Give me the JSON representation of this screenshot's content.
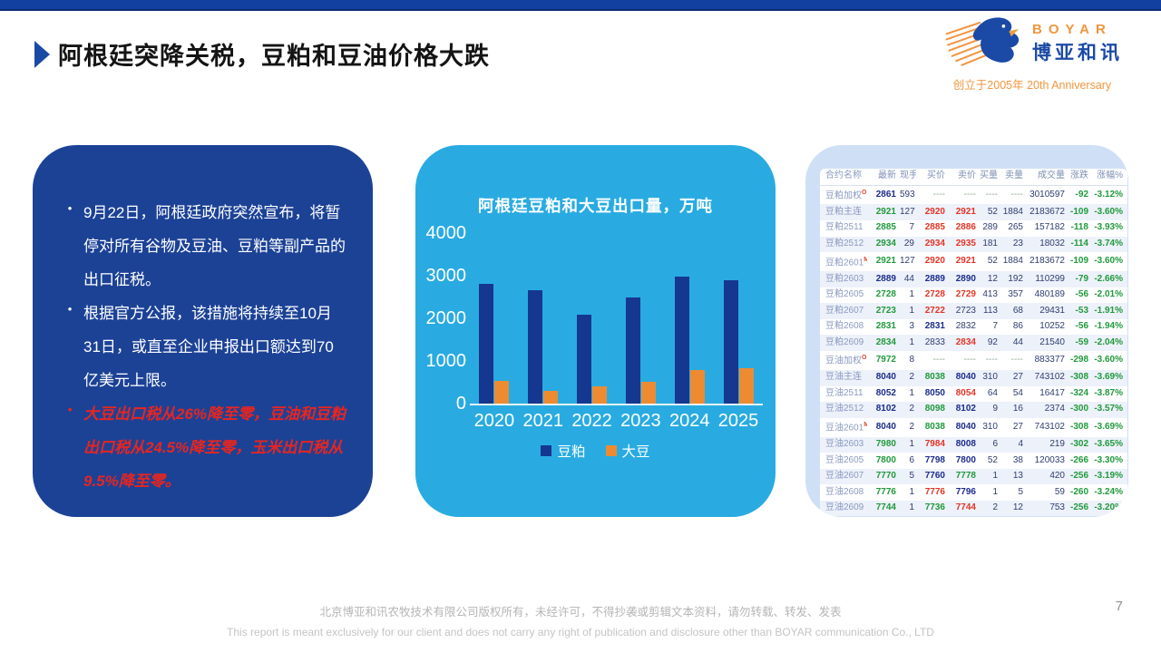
{
  "page": {
    "title": "阿根廷突降关税，豆粕和豆油价格大跌",
    "page_number": "7"
  },
  "logo": {
    "brand_en": "BOYAR",
    "brand_cn": "博亚和讯",
    "anniversary": "创立于2005年 20th Anniversary"
  },
  "notes": {
    "bullets": [
      {
        "style": "normal",
        "text": "9月22日，阿根廷政府突然宣布，将暂停对所有谷物及豆油、豆粕等副产品的出口征税。"
      },
      {
        "style": "normal",
        "text": "根据官方公报，该措施将持续至10月31日，或直至企业申报出口额达到70亿美元上限。"
      },
      {
        "style": "highlight",
        "text": "大豆出口税从26%降至零，豆油和豆粕出口税从24.5%降至零，玉米出口税从9.5%降至零。"
      }
    ]
  },
  "chart_data": {
    "type": "bar",
    "title": "阿根廷豆粕和大豆出口量，万吨",
    "categories": [
      "2020",
      "2021",
      "2022",
      "2023",
      "2024",
      "2025"
    ],
    "series": [
      {
        "name": "豆粕",
        "color": "#15378f",
        "values": [
          2800,
          2650,
          2080,
          2480,
          2980,
          2900
        ]
      },
      {
        "name": "大豆",
        "color": "#ed8b33",
        "values": [
          530,
          300,
          410,
          510,
          790,
          820
        ]
      }
    ],
    "yticks": [
      4000,
      3000,
      2000,
      1000,
      0
    ],
    "ylim": [
      0,
      4000
    ],
    "grid": false,
    "legend_position": "bottom"
  },
  "market_table": {
    "headers": [
      "合约名称",
      "最新",
      "现手",
      "买价",
      "卖价",
      "买量",
      "卖量",
      "成交量",
      "涨跌",
      "涨幅%"
    ],
    "rows": [
      {
        "name": "豆粕加权",
        "sup": "O",
        "v": [
          "2861",
          "593",
          "----",
          "----",
          "----",
          "----",
          "3010597",
          "-92",
          "-3.12%"
        ],
        "c": [
          "n",
          "k",
          "d",
          "d",
          "d",
          "d",
          "k",
          "g",
          "g"
        ],
        "frag": "4"
      },
      {
        "name": "豆粕主连",
        "sup": "",
        "v": [
          "2921",
          "127",
          "2920",
          "2921",
          "52",
          "1884",
          "2183672",
          "-109",
          "-3.60%"
        ],
        "c": [
          "g",
          "k",
          "r",
          "r",
          "k",
          "k",
          "k",
          "g",
          "g"
        ],
        "frag": "2"
      },
      {
        "name": "豆粕2511",
        "sup": "",
        "v": [
          "2885",
          "7",
          "2885",
          "2886",
          "289",
          "265",
          "157182",
          "-118",
          "-3.93%"
        ],
        "c": [
          "g",
          "k",
          "r",
          "r",
          "k",
          "k",
          "k",
          "g",
          "g"
        ],
        "frag": ""
      },
      {
        "name": "豆粕2512",
        "sup": "",
        "v": [
          "2934",
          "29",
          "2934",
          "2935",
          "181",
          "23",
          "18032",
          "-114",
          "-3.74%"
        ],
        "c": [
          "g",
          "k",
          "r",
          "r",
          "k",
          "k",
          "k",
          "g",
          "g"
        ],
        "frag": ""
      },
      {
        "name": "豆粕2601",
        "sup": "M",
        "v": [
          "2921",
          "127",
          "2920",
          "2921",
          "52",
          "1884",
          "2183672",
          "-109",
          "-3.60%"
        ],
        "c": [
          "g",
          "k",
          "r",
          "r",
          "k",
          "k",
          "k",
          "g",
          "g"
        ],
        "frag": "2"
      },
      {
        "name": "豆粕2603",
        "sup": "",
        "v": [
          "2889",
          "44",
          "2889",
          "2890",
          "12",
          "192",
          "110299",
          "-79",
          "-2.66%"
        ],
        "c": [
          "n",
          "k",
          "n",
          "n",
          "k",
          "k",
          "k",
          "g",
          "g"
        ],
        "frag": ""
      },
      {
        "name": "豆粕2605",
        "sup": "",
        "v": [
          "2728",
          "1",
          "2728",
          "2729",
          "413",
          "357",
          "480189",
          "-56",
          "-2.01%"
        ],
        "c": [
          "g",
          "k",
          "r",
          "r",
          "k",
          "k",
          "k",
          "g",
          "g"
        ],
        "frag": "3"
      },
      {
        "name": "豆粕2607",
        "sup": "",
        "v": [
          "2723",
          "1",
          "2722",
          "2723",
          "113",
          "68",
          "29431",
          "-53",
          "-1.91%"
        ],
        "c": [
          "g",
          "k",
          "r",
          "k",
          "k",
          "k",
          "k",
          "g",
          "g"
        ],
        "frag": ""
      },
      {
        "name": "豆粕2608",
        "sup": "",
        "v": [
          "2831",
          "3",
          "2831",
          "2832",
          "7",
          "86",
          "10252",
          "-56",
          "-1.94%"
        ],
        "c": [
          "g",
          "k",
          "n",
          "k",
          "k",
          "k",
          "k",
          "g",
          "g"
        ],
        "frag": ""
      },
      {
        "name": "豆粕2609",
        "sup": "",
        "v": [
          "2834",
          "1",
          "2833",
          "2834",
          "92",
          "44",
          "21540",
          "-59",
          "-2.04%"
        ],
        "c": [
          "g",
          "k",
          "k",
          "r",
          "k",
          "k",
          "k",
          "g",
          "g"
        ],
        "frag": ""
      },
      {
        "name": "豆油加权",
        "sup": "O",
        "v": [
          "7972",
          "8",
          "----",
          "----",
          "----",
          "----",
          "883377",
          "-298",
          "-3.60%"
        ],
        "c": [
          "g",
          "k",
          "d",
          "d",
          "d",
          "d",
          "k",
          "g",
          "g"
        ],
        "frag": ""
      },
      {
        "name": "豆油主连",
        "sup": "",
        "v": [
          "8040",
          "2",
          "8038",
          "8040",
          "310",
          "27",
          "743102",
          "-308",
          "-3.69%"
        ],
        "c": [
          "n",
          "k",
          "g",
          "n",
          "k",
          "k",
          "k",
          "g",
          "g"
        ],
        "frag": ""
      },
      {
        "name": "豆油2511",
        "sup": "",
        "v": [
          "8052",
          "1",
          "8050",
          "8054",
          "64",
          "54",
          "16417",
          "-324",
          "-3.87%"
        ],
        "c": [
          "n",
          "k",
          "n",
          "r",
          "k",
          "k",
          "k",
          "g",
          "g"
        ],
        "frag": ""
      },
      {
        "name": "豆油2512",
        "sup": "",
        "v": [
          "8102",
          "2",
          "8098",
          "8102",
          "9",
          "16",
          "2374",
          "-300",
          "-3.57%"
        ],
        "c": [
          "n",
          "k",
          "g",
          "n",
          "k",
          "k",
          "k",
          "g",
          "g"
        ],
        "frag": ""
      },
      {
        "name": "豆油2601",
        "sup": "M",
        "v": [
          "8040",
          "2",
          "8038",
          "8040",
          "310",
          "27",
          "743102",
          "-308",
          "-3.69%"
        ],
        "c": [
          "n",
          "k",
          "g",
          "n",
          "k",
          "k",
          "k",
          "g",
          "g"
        ],
        "frag": ""
      },
      {
        "name": "豆油2603",
        "sup": "",
        "v": [
          "7980",
          "1",
          "7984",
          "8008",
          "6",
          "4",
          "219",
          "-302",
          "-3.65%"
        ],
        "c": [
          "g",
          "k",
          "r",
          "n",
          "k",
          "k",
          "k",
          "g",
          "g"
        ],
        "frag": ""
      },
      {
        "name": "豆油2605",
        "sup": "",
        "v": [
          "7800",
          "6",
          "7798",
          "7800",
          "52",
          "38",
          "120033",
          "-266",
          "-3.30%"
        ],
        "c": [
          "g",
          "k",
          "n",
          "n",
          "k",
          "k",
          "k",
          "g",
          "g"
        ],
        "frag": ""
      },
      {
        "name": "豆油2607",
        "sup": "",
        "v": [
          "7770",
          "5",
          "7760",
          "7778",
          "1",
          "13",
          "420",
          "-256",
          "-3.19%"
        ],
        "c": [
          "g",
          "k",
          "n",
          "g",
          "k",
          "k",
          "k",
          "g",
          "g"
        ],
        "frag": ""
      },
      {
        "name": "豆油2608",
        "sup": "",
        "v": [
          "7776",
          "1",
          "7776",
          "7796",
          "1",
          "5",
          "59",
          "-260",
          "-3.24%"
        ],
        "c": [
          "g",
          "k",
          "r",
          "n",
          "k",
          "k",
          "k",
          "g",
          "g"
        ],
        "frag": ""
      },
      {
        "name": "豆油2609",
        "sup": "",
        "v": [
          "7744",
          "1",
          "7736",
          "7744",
          "2",
          "12",
          "753",
          "-256",
          "-3.20%"
        ],
        "c": [
          "g",
          "k",
          "g",
          "r",
          "k",
          "k",
          "k",
          "g",
          "g"
        ],
        "frag": ""
      }
    ]
  },
  "footer": {
    "line1": "北京博亚和讯农牧技术有限公司版权所有，未经许可，不得抄袭或剪辑文本资料，请勿转载、转发、发表",
    "line2": "This report is meant exclusively for our client and does not carry any right of publication and disclosure other than BOYAR communication Co., LTD"
  },
  "colors": {
    "top_bar": "#1240a0",
    "accent_blue": "#1b4aa6",
    "card_navy": "#1c4296",
    "card_cyan": "#29abe2",
    "card_light_blue": "#cfe0f6",
    "highlight_red": "#e8251f",
    "bar_navy": "#15378f",
    "bar_orange": "#ed8b33",
    "table_green": "#209a3c",
    "table_red": "#e23526",
    "table_navy": "#1c2c8c",
    "logo_orange": "#f0963c"
  }
}
